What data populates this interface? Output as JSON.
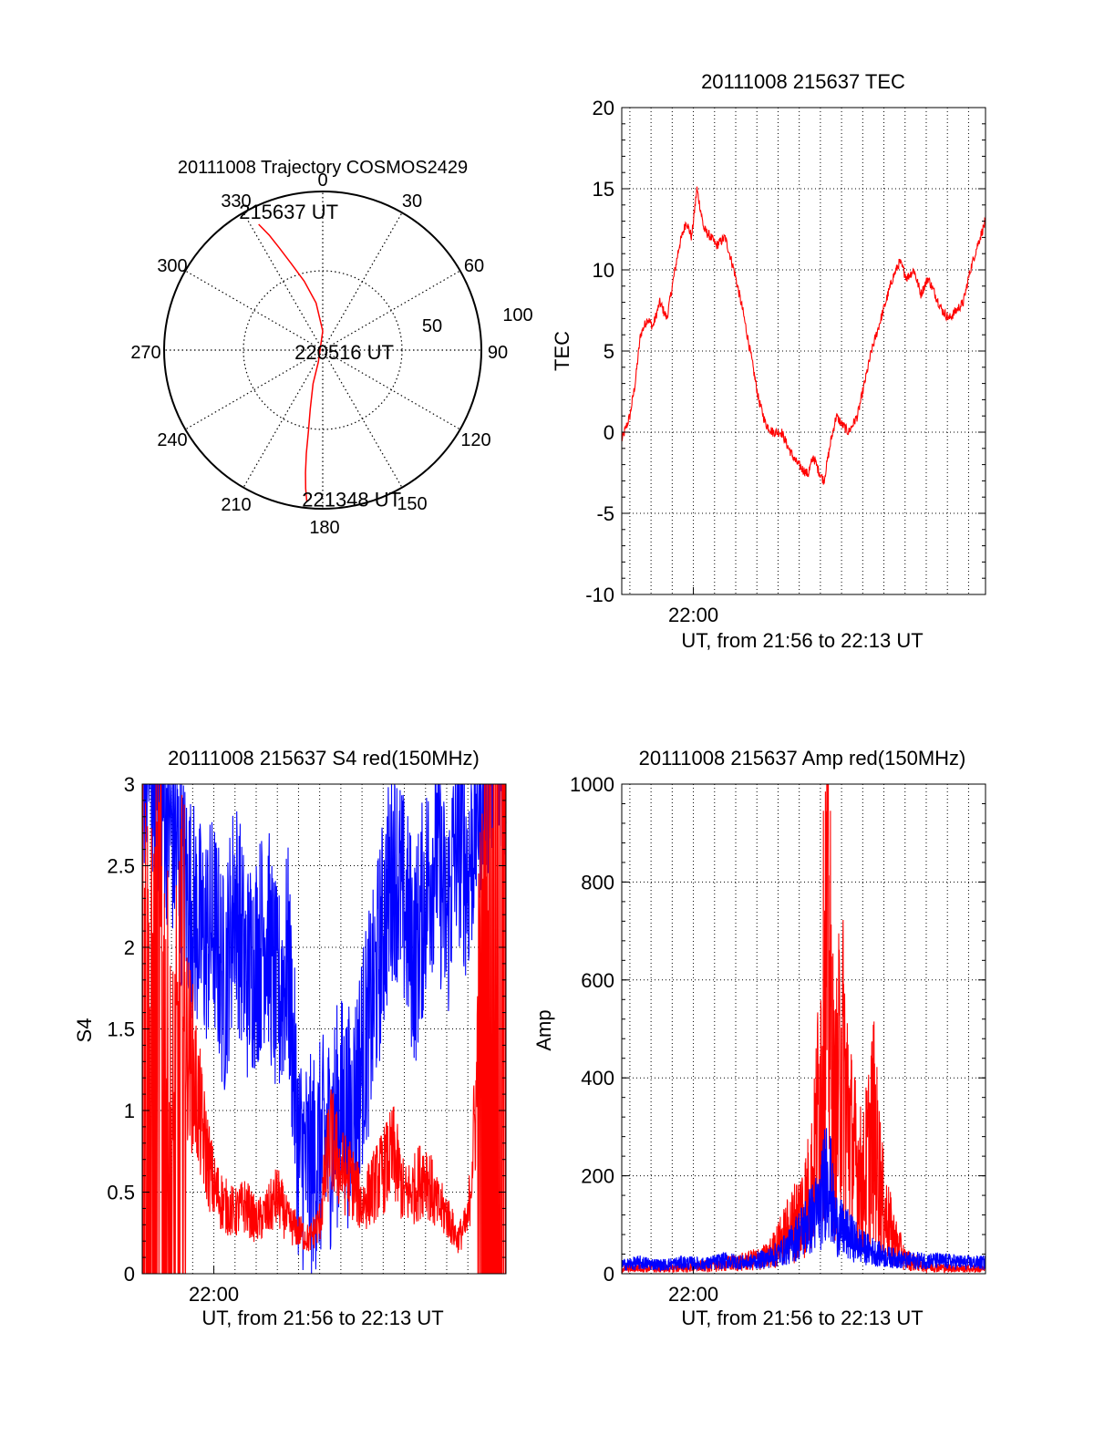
{
  "chart_data": [
    {
      "type": "polar",
      "title": "20111008 Trajectory COSMOS2429",
      "angle_labels": [
        "0",
        "30",
        "60",
        "90",
        "120",
        "150",
        "180",
        "210",
        "240",
        "270",
        "300",
        "330"
      ],
      "radius_labels": [
        "50",
        "100"
      ],
      "radius_max": 100,
      "grid": true,
      "series_color": "#ff0000",
      "trajectory": {
        "azimuth_deg": [
          333,
          335,
          337,
          340,
          345,
          352,
          360,
          200,
          196,
          192,
          190,
          189,
          188,
          187,
          186
        ],
        "radius": [
          89,
          80,
          70,
          58,
          45,
          30,
          12,
          8,
          22,
          38,
          52,
          66,
          78,
          88,
          96
        ]
      },
      "annotations": [
        {
          "text": "215637 UT",
          "azimuth_deg": 343,
          "radius": 90
        },
        {
          "text": "220516 UT",
          "azimuth_deg": 105,
          "radius": 9
        },
        {
          "text": "221348 UT",
          "azimuth_deg": 172,
          "radius": 96
        }
      ]
    },
    {
      "type": "line",
      "title": "20111008 215637 TEC",
      "xlabel": "UT, from 21:56 to 22:13 UT",
      "ylabel": "TEC",
      "xlim": [
        "21:56:37",
        "22:13:48"
      ],
      "ylim": [
        -10,
        20
      ],
      "yticks": [
        "-10",
        "-5",
        "0",
        "5",
        "10",
        "15",
        "20"
      ],
      "xtick_label": "22:00",
      "xtick_label_time": "22:00:00",
      "grid": true,
      "series": [
        {
          "color": "#ff0000",
          "x": [
            "21:56:37",
            "21:57:00",
            "21:57:15",
            "21:57:30",
            "21:57:50",
            "21:58:05",
            "21:58:25",
            "21:58:45",
            "21:59:00",
            "21:59:20",
            "21:59:40",
            "21:59:55",
            "22:00:10",
            "22:00:30",
            "22:00:50",
            "22:01:05",
            "22:01:30",
            "22:01:55",
            "22:02:20",
            "22:02:45",
            "22:03:05",
            "22:03:25",
            "22:03:45",
            "22:04:10",
            "22:04:30",
            "22:04:50",
            "22:05:10",
            "22:05:25",
            "22:05:40",
            "22:05:55",
            "22:06:10",
            "22:06:30",
            "22:06:45",
            "22:07:00",
            "22:07:20",
            "22:07:45",
            "22:08:05",
            "22:08:25",
            "22:08:45",
            "22:09:05",
            "22:09:25",
            "22:09:45",
            "22:10:05",
            "22:10:25",
            "22:10:45",
            "22:11:05",
            "22:11:25",
            "22:11:45",
            "22:12:05",
            "22:12:25",
            "22:12:45",
            "22:13:05",
            "22:13:25",
            "22:13:48"
          ],
          "y": [
            -0.5,
            1,
            3,
            6,
            7,
            6.5,
            8,
            7,
            9,
            11.5,
            13,
            12,
            15,
            12.5,
            12,
            11.5,
            12,
            10,
            7.5,
            4.5,
            2,
            0.5,
            0,
            0,
            -1,
            -1.8,
            -2.3,
            -2.6,
            -1.5,
            -2.4,
            -3,
            -0.5,
            1,
            0.5,
            0,
            1,
            3,
            5,
            6.5,
            8,
            9.5,
            10.5,
            9.5,
            10,
            8.5,
            9.5,
            8.5,
            7.5,
            7,
            7.5,
            8,
            10,
            11.5,
            13
          ]
        }
      ]
    },
    {
      "type": "line",
      "title": "20111008 215637 S4 red(150MHz)",
      "xlabel": "UT, from 21:56 to 22:13 UT",
      "ylabel": "S4",
      "xlim": [
        "21:56:37",
        "22:13:48"
      ],
      "ylim": [
        0,
        3
      ],
      "yticks": [
        "0",
        "0.5",
        "1",
        "1.5",
        "2",
        "2.5",
        "3"
      ],
      "xtick_label": "22:00",
      "xtick_label_time": "22:00:00",
      "grid": true,
      "series": [
        {
          "color": "#0000ff",
          "x": [
            "21:56:37",
            "21:57:00",
            "21:57:30",
            "21:58:00",
            "21:58:30",
            "21:59:00",
            "21:59:30",
            "22:00:00",
            "22:00:30",
            "22:01:00",
            "22:01:30",
            "22:02:00",
            "22:02:30",
            "22:03:00",
            "22:03:30",
            "22:04:00",
            "22:04:30",
            "22:05:00",
            "22:05:30",
            "22:06:00",
            "22:06:30",
            "22:07:00",
            "22:07:30",
            "22:08:00",
            "22:08:30",
            "22:09:00",
            "22:09:30",
            "22:10:00",
            "22:10:30",
            "22:11:00",
            "22:11:30",
            "22:12:00",
            "22:12:30",
            "22:13:00",
            "22:13:48"
          ],
          "y": [
            3,
            3,
            2.8,
            2.6,
            2.3,
            2.1,
            1.9,
            2.0,
            1.6,
            2.2,
            1.7,
            1.8,
            2.0,
            1.5,
            1.8,
            0.6,
            0.5,
            0.6,
            0.7,
            0.9,
            0.8,
            1.2,
            1.5,
            2.0,
            2.4,
            2.1,
            1.8,
            2.2,
            2.5,
            2.0,
            2.6,
            2.3,
            2.8,
            3,
            3
          ]
        },
        {
          "color": "#ff0000",
          "x": [
            "21:56:37",
            "21:57:00",
            "21:57:30",
            "21:58:00",
            "21:58:30",
            "21:59:00",
            "21:59:30",
            "22:00:00",
            "22:00:30",
            "22:01:00",
            "22:01:30",
            "22:02:00",
            "22:02:30",
            "22:03:00",
            "22:03:30",
            "22:04:00",
            "22:04:30",
            "22:05:00",
            "22:05:30",
            "22:06:00",
            "22:06:30",
            "22:07:00",
            "22:07:30",
            "22:08:00",
            "22:08:30",
            "22:09:00",
            "22:09:30",
            "22:10:00",
            "22:10:30",
            "22:11:00",
            "22:11:30",
            "22:12:00",
            "22:12:30",
            "22:13:00",
            "22:13:48"
          ],
          "y": [
            2.4,
            1.2,
            2.0,
            0.4,
            1.5,
            1.2,
            0.8,
            0.5,
            0.4,
            0.35,
            0.4,
            0.3,
            0.35,
            0.45,
            0.3,
            0.25,
            0.2,
            0.3,
            0.8,
            0.6,
            0.55,
            0.4,
            0.5,
            0.6,
            0.7,
            0.45,
            0.5,
            0.6,
            0.4,
            0.35,
            0.2,
            0.3,
            1.2,
            2.2,
            2.8
          ]
        }
      ]
    },
    {
      "type": "line",
      "title": "20111008 215637 Amp red(150MHz)",
      "xlabel": "UT, from 21:56 to 22:13 UT",
      "ylabel": "Amp",
      "xlim": [
        "21:56:37",
        "22:13:48"
      ],
      "ylim": [
        0,
        1000
      ],
      "yticks": [
        "0",
        "200",
        "400",
        "600",
        "800",
        "1000"
      ],
      "xtick_label": "22:00",
      "xtick_label_time": "22:00:00",
      "grid": true,
      "series": [
        {
          "color": "#ff0000",
          "x": [
            "21:56:37",
            "21:57:30",
            "21:58:30",
            "21:59:30",
            "22:00:30",
            "22:01:30",
            "22:02:30",
            "22:03:30",
            "22:04:00",
            "22:04:30",
            "22:05:00",
            "22:05:20",
            "22:05:40",
            "22:06:00",
            "22:06:20",
            "22:06:40",
            "22:07:00",
            "22:07:30",
            "22:08:00",
            "22:08:30",
            "22:09:00",
            "22:09:30",
            "22:10:00",
            "22:11:00",
            "22:12:00",
            "22:13:00",
            "22:13:48"
          ],
          "y": [
            10,
            12,
            10,
            12,
            15,
            20,
            25,
            35,
            60,
            90,
            120,
            150,
            200,
            400,
            700,
            300,
            450,
            250,
            180,
            300,
            130,
            70,
            30,
            15,
            12,
            10,
            10
          ]
        },
        {
          "color": "#0000ff",
          "x": [
            "21:56:37",
            "21:57:30",
            "21:58:30",
            "21:59:30",
            "22:00:30",
            "22:01:30",
            "22:02:30",
            "22:03:30",
            "22:04:00",
            "22:04:30",
            "22:05:00",
            "22:05:20",
            "22:05:40",
            "22:06:00",
            "22:06:20",
            "22:06:40",
            "22:07:00",
            "22:07:30",
            "22:08:00",
            "22:08:30",
            "22:09:00",
            "22:09:30",
            "22:10:00",
            "22:11:00",
            "22:12:00",
            "22:13:00",
            "22:13:48"
          ],
          "y": [
            20,
            25,
            20,
            25,
            22,
            30,
            25,
            35,
            45,
            60,
            90,
            110,
            130,
            150,
            250,
            120,
            100,
            80,
            60,
            50,
            40,
            35,
            30,
            30,
            28,
            25,
            25
          ]
        }
      ]
    }
  ]
}
